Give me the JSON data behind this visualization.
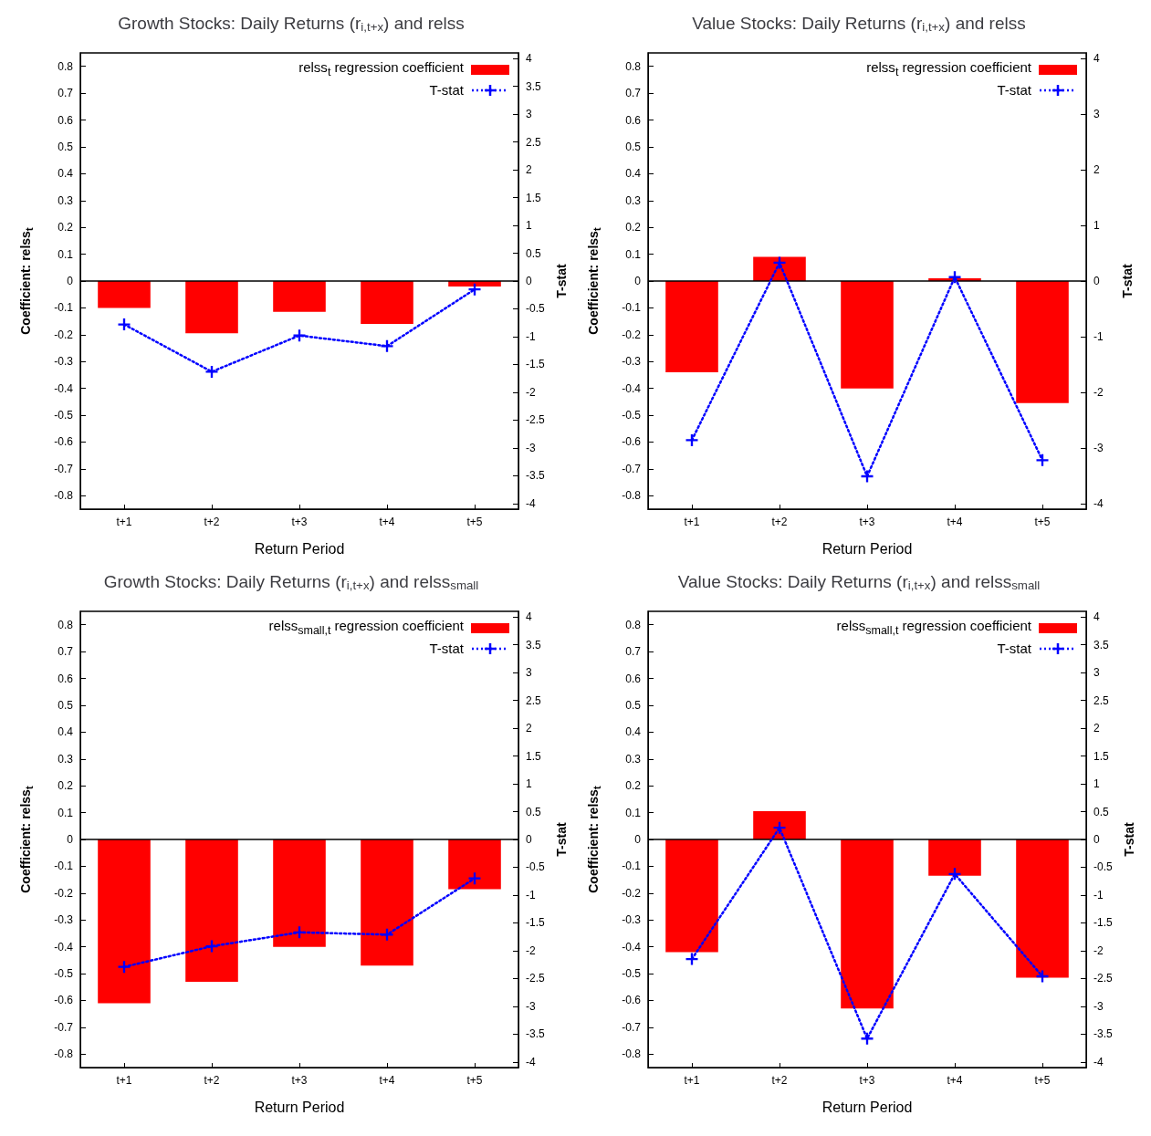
{
  "chart_data": [
    {
      "type": "bar",
      "title": "Growth Stocks: Daily Returns (r$_{i,t+x}$) and relss",
      "xlabel": "Return Period",
      "ylabel": "Coefficient: relss$_{t}$",
      "y2label": "T-stat",
      "categories": [
        "t+1",
        "t+2",
        "t+3",
        "t+4",
        "t+5"
      ],
      "series": [
        {
          "name": "relss$_{t}$ regression coefficient",
          "color": "#ff0000",
          "values": [
            -0.1,
            -0.195,
            -0.115,
            -0.16,
            -0.02
          ]
        },
        {
          "name": "T-stat",
          "type": "line",
          "axis": "y2",
          "color": "#0000ff",
          "values": [
            -0.78,
            -1.63,
            -0.98,
            -1.17,
            -0.15
          ]
        }
      ],
      "ylim": [
        -0.85,
        0.85
      ],
      "yticks": [
        -0.8,
        -0.7,
        -0.6,
        -0.5,
        -0.4,
        -0.3,
        -0.2,
        -0.1,
        0,
        0.1,
        0.2,
        0.3,
        0.4,
        0.5,
        0.6,
        0.7,
        0.8
      ],
      "y2lim": [
        -4.1,
        4.1
      ],
      "y2ticks": [
        -4,
        -3.5,
        -3,
        -2.5,
        -2,
        -1.5,
        -1,
        -0.5,
        0,
        0.5,
        1,
        1.5,
        2,
        2.5,
        3,
        3.5,
        4
      ],
      "ref_lines": [
        {
          "axis": "y",
          "value": 0,
          "color": "#000000"
        }
      ],
      "grid": false,
      "legend": "top right",
      "marker": "cross",
      "line_style": "dotted"
    },
    {
      "type": "bar",
      "title": "Value Stocks: Daily Returns (r$_{i,t+x}$) and relss",
      "xlabel": "Return Period",
      "ylabel": "Coefficient: relss$_{t}$",
      "y2label": "T-stat",
      "categories": [
        "t+1",
        "t+2",
        "t+3",
        "t+4",
        "t+5"
      ],
      "series": [
        {
          "name": "relss$_{t}$ regression coefficient",
          "color": "#ff0000",
          "values": [
            -0.34,
            0.09,
            -0.4,
            0.01,
            -0.455
          ]
        },
        {
          "name": "T-stat",
          "type": "line",
          "axis": "y2",
          "color": "#0000ff",
          "values": [
            -2.86,
            0.33,
            -3.51,
            0.07,
            -3.22
          ]
        }
      ],
      "ylim": [
        -0.85,
        0.85
      ],
      "yticks": [
        -0.8,
        -0.7,
        -0.6,
        -0.5,
        -0.4,
        -0.3,
        -0.2,
        -0.1,
        0,
        0.1,
        0.2,
        0.3,
        0.4,
        0.5,
        0.6,
        0.7,
        0.8
      ],
      "y2lim": [
        -4.1,
        4.1
      ],
      "y2ticks": [
        -4,
        -3,
        -2,
        -1,
        0,
        1,
        2,
        3,
        4
      ],
      "ref_lines": [
        {
          "axis": "y",
          "value": 0,
          "color": "#000000"
        }
      ],
      "grid": false,
      "legend": "top right",
      "marker": "cross",
      "line_style": "dotted"
    },
    {
      "type": "bar",
      "title": "Growth Stocks: Daily Returns (r$_{i,t+x}$) and relss$_{small}$",
      "xlabel": "Return Period",
      "ylabel": "Coefficient: relss$_{t}$",
      "y2label": "T-stat",
      "categories": [
        "t+1",
        "t+2",
        "t+3",
        "t+4",
        "t+5"
      ],
      "series": [
        {
          "name": "relss$_{small,t}$ regression coefficient",
          "color": "#ff0000",
          "values": [
            -0.61,
            -0.53,
            -0.4,
            -0.47,
            -0.185
          ]
        },
        {
          "name": "T-stat",
          "type": "line",
          "axis": "y2",
          "color": "#0000ff",
          "values": [
            -2.29,
            -1.92,
            -1.67,
            -1.71,
            -0.7
          ]
        }
      ],
      "ylim": [
        -0.85,
        0.85
      ],
      "yticks": [
        -0.8,
        -0.7,
        -0.6,
        -0.5,
        -0.4,
        -0.3,
        -0.2,
        -0.1,
        0,
        0.1,
        0.2,
        0.3,
        0.4,
        0.5,
        0.6,
        0.7,
        0.8
      ],
      "y2lim": [
        -4.1,
        4.1
      ],
      "y2ticks": [
        -4,
        -3.5,
        -3,
        -2.5,
        -2,
        -1.5,
        -1,
        -0.5,
        0,
        0.5,
        1,
        1.5,
        2,
        2.5,
        3,
        3.5,
        4
      ],
      "ref_lines": [
        {
          "axis": "y",
          "value": 0,
          "color": "#000000"
        }
      ],
      "grid": false,
      "legend": "top right",
      "marker": "cross",
      "line_style": "dotted"
    },
    {
      "type": "bar",
      "title": "Value Stocks: Daily Returns (r$_{i,t+x}$) and relss$_{small}$",
      "xlabel": "Return Period",
      "ylabel": "Coefficient: relss$_{t}$",
      "y2label": "T-stat",
      "categories": [
        "t+1",
        "t+2",
        "t+3",
        "t+4",
        "t+5"
      ],
      "series": [
        {
          "name": "relss$_{small,t}$ regression coefficient",
          "color": "#ff0000",
          "values": [
            -0.42,
            0.105,
            -0.63,
            -0.135,
            -0.515
          ]
        },
        {
          "name": "T-stat",
          "type": "line",
          "axis": "y2",
          "color": "#0000ff",
          "values": [
            -2.15,
            0.21,
            -3.58,
            -0.62,
            -2.46
          ]
        }
      ],
      "ylim": [
        -0.85,
        0.85
      ],
      "yticks": [
        -0.8,
        -0.7,
        -0.6,
        -0.5,
        -0.4,
        -0.3,
        -0.2,
        -0.1,
        0,
        0.1,
        0.2,
        0.3,
        0.4,
        0.5,
        0.6,
        0.7,
        0.8
      ],
      "y2lim": [
        -4.1,
        4.1
      ],
      "y2ticks": [
        -4,
        -3.5,
        -3,
        -2.5,
        -2,
        -1.5,
        -1,
        -0.5,
        0,
        0.5,
        1,
        1.5,
        2,
        2.5,
        3,
        3.5,
        4
      ],
      "ref_lines": [
        {
          "axis": "y",
          "value": 0,
          "color": "#000000"
        }
      ],
      "grid": false,
      "legend": "top right",
      "marker": "cross",
      "line_style": "dotted"
    }
  ]
}
